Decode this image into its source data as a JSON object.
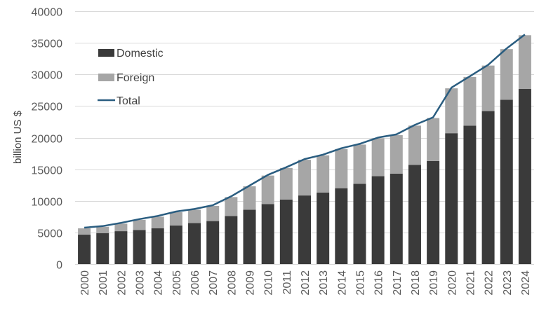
{
  "chart_data": {
    "type": "bar",
    "stacked": true,
    "title": "",
    "xlabel": "",
    "ylabel": "billion US $",
    "ylim": [
      0,
      40000
    ],
    "yticks": [
      0,
      5000,
      10000,
      15000,
      20000,
      25000,
      30000,
      35000,
      40000
    ],
    "ytick_labels": [
      "0",
      "5000",
      "10000",
      "15000",
      "20000",
      "25000",
      "30000",
      "35000",
      "40000"
    ],
    "grid": true,
    "legend_position": "top-left",
    "categories": [
      "2000",
      "2001",
      "2002",
      "2003",
      "2004",
      "2005",
      "2006",
      "2007",
      "2008",
      "2009",
      "2010",
      "2011",
      "2012",
      "2013",
      "2014",
      "2015",
      "2016",
      "2017",
      "2018",
      "2019",
      "2020",
      "2021",
      "2022",
      "2023",
      "2024"
    ],
    "series": [
      {
        "name": "Domestic",
        "type": "bar",
        "color": "#3a3a3a",
        "values": [
          4650,
          4900,
          5200,
          5400,
          5650,
          6100,
          6500,
          6800,
          7600,
          8600,
          9500,
          10200,
          10850,
          11300,
          12000,
          12700,
          13900,
          14300,
          15700,
          16300,
          20700,
          21900,
          24200,
          26000,
          27700
        ]
      },
      {
        "name": "Foreign",
        "type": "bar",
        "color": "#a6a6a6",
        "values": [
          1000,
          1000,
          1200,
          1600,
          1850,
          2100,
          2100,
          2400,
          3000,
          3700,
          4500,
          5000,
          5650,
          5900,
          6200,
          6200,
          6000,
          6100,
          6200,
          6800,
          7100,
          7700,
          7200,
          8000,
          8500
        ]
      },
      {
        "name": "Total",
        "type": "line",
        "color": "#2a5d80",
        "values": [
          5650,
          5900,
          6400,
          7000,
          7500,
          8200,
          8600,
          9200,
          10600,
          12300,
          14000,
          15200,
          16500,
          17200,
          18200,
          18900,
          19900,
          20400,
          21900,
          23100,
          27800,
          29600,
          31400,
          34000,
          36200
        ]
      }
    ]
  },
  "colors": {
    "gridline": "#d9d9d9",
    "axis": "#d9d9d9"
  }
}
